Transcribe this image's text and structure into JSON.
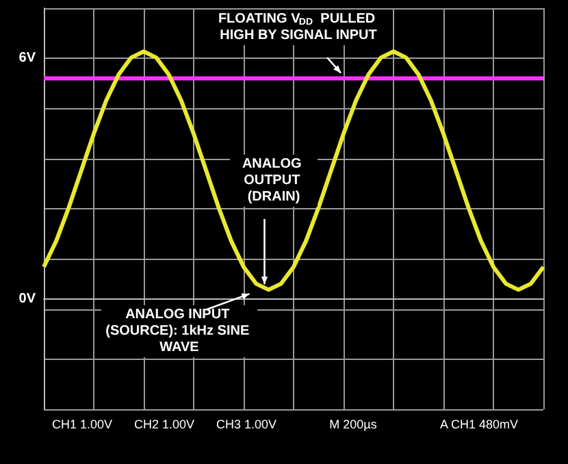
{
  "chart_data": {
    "type": "line",
    "categories": [
      null,
      null,
      null,
      null,
      null,
      null,
      null,
      null,
      null,
      null,
      null,
      null,
      null,
      null,
      null,
      null,
      null,
      null,
      null,
      null,
      null,
      null,
      null,
      null,
      null,
      null,
      null,
      null,
      null,
      null,
      null,
      null,
      null,
      null,
      null,
      null,
      null,
      null,
      null,
      null,
      null
    ],
    "series": [
      {
        "color": "#ff33ff",
        "values": [
          5.5,
          5.5,
          5.5,
          5.5,
          5.5,
          5.5,
          5.5,
          5.5,
          5.5,
          5.5,
          5.5,
          5.5,
          5.5,
          5.5,
          5.5,
          5.5,
          5.5,
          5.5,
          5.5,
          5.5,
          5.5,
          5.5,
          5.5,
          5.5,
          5.5,
          5.5,
          5.5,
          5.5,
          5.5,
          5.5,
          5.5,
          5.5,
          5.5,
          5.5,
          5.5,
          5.5,
          5.5,
          5.5,
          5.5,
          5.5,
          5.5
        ]
      },
      {
        "color": "#e8e830",
        "values": [
          0.8,
          1.45,
          2.28,
          3.2,
          4.12,
          4.95,
          5.6,
          6.02,
          6.17,
          6.02,
          5.6,
          4.95,
          4.12,
          3.2,
          2.28,
          1.45,
          0.8,
          0.38,
          0.23,
          0.38,
          0.8,
          1.45,
          2.28,
          3.2,
          4.12,
          4.95,
          5.6,
          6.02,
          6.17,
          6.02,
          5.6,
          4.95,
          4.12,
          3.2,
          2.28,
          1.45,
          0.8,
          0.38,
          0.23,
          0.38,
          0.8
        ]
      }
    ],
    "ylim": [
      -2.75,
      7.25
    ],
    "yticks": [
      {
        "value": -2.75,
        "label": null
      },
      {
        "value": -1.5,
        "label": null
      },
      {
        "value": -0.25,
        "label": null
      },
      {
        "value": 0,
        "label": "0V"
      },
      {
        "value": 1,
        "label": null
      },
      {
        "value": 2.25,
        "label": null
      },
      {
        "value": 3.5,
        "label": null
      },
      {
        "value": 4.75,
        "label": null
      },
      {
        "value": 6,
        "label": "6V"
      },
      {
        "value": 7.25,
        "label": null
      }
    ],
    "tick_labels": "y",
    "grid": true,
    "marker": "none",
    "annotations": [
      "FLOATING V$_{DD}$ PULLED HIGH BY SIGNAL INPUT",
      "ANALOG OUTPUT (DRAIN)",
      "ANALOG INPUT (SOURCE): 1kHz SINE WAVE",
      "CH1 1.00V",
      "CH2 1.00V",
      "CH3 1.00V",
      "M 200µs",
      "A CH1 480mV"
    ]
  }
}
